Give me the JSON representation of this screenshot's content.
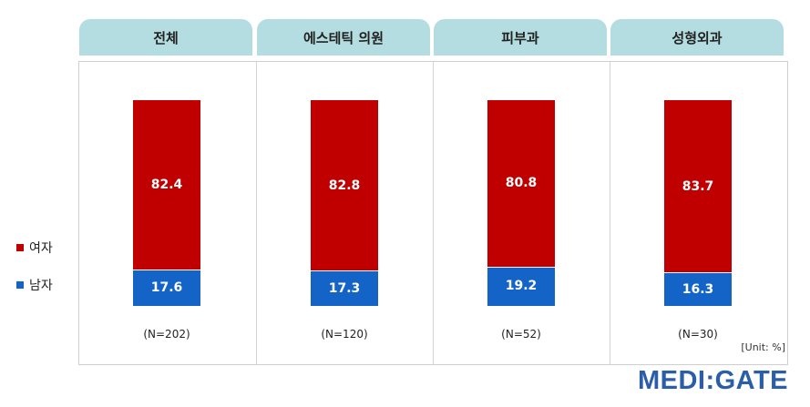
{
  "chart_data": {
    "type": "bar",
    "stacked": true,
    "categories": [
      "전체",
      "에스테틱 의원",
      "피부과",
      "성형외과"
    ],
    "series": [
      {
        "name": "여자",
        "values": [
          82.4,
          82.8,
          80.8,
          83.7
        ],
        "color": "#c00000"
      },
      {
        "name": "남자",
        "values": [
          17.6,
          17.3,
          19.2,
          16.3
        ],
        "color": "#1464c8"
      }
    ],
    "value_labels": {
      "female": [
        "82.4",
        "82.8",
        "80.8",
        "83.7"
      ],
      "male": [
        "17.6",
        "17.3",
        "19.2",
        "16.3"
      ]
    },
    "n_labels": [
      "(N=202)",
      "(N=120)",
      "(N=52)",
      "(N=30)"
    ],
    "ylim": [
      0,
      100
    ],
    "unit_label": "[Unit: %]",
    "legend_position": "left",
    "grid": false
  },
  "logo": "MEDI:GATE"
}
